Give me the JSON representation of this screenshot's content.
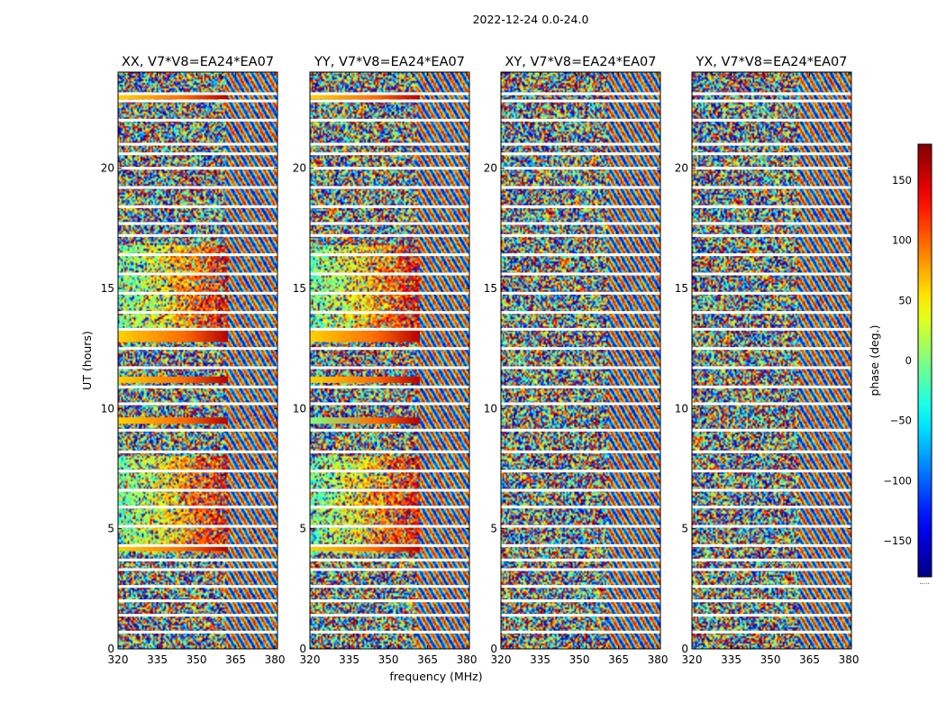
{
  "figure": {
    "suptitle": "2022-12-24 0.0-24.0",
    "xlabel": "frequency (MHz)",
    "ylabel": "UT (hours)"
  },
  "colorbar": {
    "label": "phase (deg.)",
    "range": [
      -180,
      180
    ],
    "ticks": [
      -150,
      -100,
      -50,
      0,
      50,
      100,
      150
    ],
    "tick_labels": [
      "−150",
      "−100",
      "−50",
      "0",
      "50",
      "100",
      "150"
    ],
    "colormap": "jet",
    "footnote": "....."
  },
  "chart_data": {
    "type": "heatmap",
    "value": "phase (deg.)",
    "xlim": [
      320,
      381
    ],
    "ylim": [
      0,
      24
    ],
    "xticks": [
      320,
      335,
      350,
      365,
      380
    ],
    "xtick_labels": [
      "320",
      "335",
      "350",
      "365",
      "380"
    ],
    "yticks": [
      0,
      5,
      10,
      15,
      20
    ],
    "ytick_labels": [
      "0",
      "5",
      "10",
      "15",
      "20"
    ],
    "flagged_color": "#ffffff",
    "panels": [
      {
        "title": "XX, V7*V8=EA24*EA07",
        "flagged_rows_ut": [
          23.1,
          22.8,
          22.0,
          21.0,
          20.6,
          20.0,
          19.2,
          18.4,
          17.7,
          17.2,
          16.4,
          15.6,
          14.8,
          14.0,
          13.3,
          12.5,
          11.7,
          10.9,
          10.2,
          9.1,
          8.2,
          7.4,
          6.6,
          5.9,
          5.1,
          4.3,
          3.7,
          3.3,
          2.6,
          2.0,
          1.4,
          0.7
        ],
        "bright_rows_ut": [
          23.0,
          13.1,
          12.9,
          11.2,
          9.5,
          4.2
        ],
        "coherent_window": {
          "ut": [
            [
              4.0,
              8.0
            ],
            [
              13.2,
              16.8
            ]
          ],
          "freq_mhz": [
            320,
            362
          ]
        }
      },
      {
        "title": "YY, V7*V8=EA24*EA07",
        "flagged_rows_ut": [
          23.1,
          22.8,
          22.0,
          21.0,
          20.6,
          20.0,
          19.2,
          18.4,
          17.7,
          17.2,
          16.4,
          15.6,
          14.8,
          14.0,
          13.3,
          12.5,
          11.7,
          10.9,
          10.2,
          9.1,
          8.2,
          7.4,
          6.6,
          5.9,
          5.1,
          4.3,
          3.7,
          3.3,
          2.6,
          2.0,
          1.4,
          0.7
        ],
        "bright_rows_ut": [
          23.0,
          13.1,
          12.9,
          11.2,
          9.5,
          4.2
        ],
        "coherent_window": {
          "ut": [
            [
              4.0,
              8.0
            ],
            [
              13.2,
              16.8
            ]
          ],
          "freq_mhz": [
            320,
            362
          ]
        }
      },
      {
        "title": "XY, V7*V8=EA24*EA07",
        "flagged_rows_ut": [
          23.1,
          22.8,
          22.0,
          21.0,
          20.6,
          20.0,
          19.2,
          18.4,
          17.7,
          17.2,
          16.4,
          15.6,
          14.8,
          14.0,
          13.3,
          12.5,
          11.7,
          10.9,
          10.2,
          9.1,
          8.2,
          7.4,
          6.6,
          5.9,
          5.1,
          4.3,
          3.7,
          3.3,
          2.6,
          2.0,
          1.4,
          0.7
        ],
        "bright_rows_ut": [],
        "coherent_window": null
      },
      {
        "title": "YX, V7*V8=EA24*EA07",
        "flagged_rows_ut": [
          23.1,
          22.8,
          22.0,
          21.0,
          20.6,
          20.0,
          19.2,
          18.4,
          17.7,
          17.2,
          16.4,
          15.6,
          14.8,
          14.0,
          13.3,
          12.5,
          11.7,
          10.9,
          10.2,
          9.1,
          8.2,
          7.4,
          6.6,
          5.9,
          5.1,
          4.3,
          3.7,
          3.3,
          2.6,
          2.0,
          1.4,
          0.7
        ],
        "bright_rows_ut": [],
        "coherent_window": null
      }
    ]
  }
}
